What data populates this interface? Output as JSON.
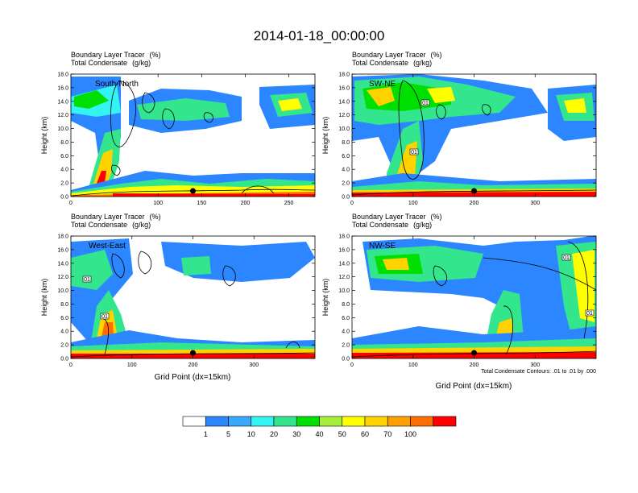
{
  "chart_data": {
    "type": "heatmap",
    "title": "2014-01-18_00:00:00",
    "fill_field": "Boundary Layer Tracer",
    "fill_units": "(%)",
    "contour_field": "Total Condensate",
    "contour_units": "(g/kg)",
    "contour_note": "Total Condensate Contours: .01 to .01 by .000",
    "xlabel": "Grid Point (dx=15km)",
    "ylabel": "Height (km)",
    "ylim": [
      0,
      18
    ],
    "yticks": [
      "0.0",
      "2.0",
      "4.0",
      "6.0",
      "8.0",
      "10.0",
      "12.0",
      "14.0",
      "16.0",
      "18.0"
    ],
    "colorbar": {
      "levels": [
        "1",
        "5",
        "10",
        "20",
        "30",
        "40",
        "50",
        "60",
        "70",
        "100"
      ],
      "colors": [
        "#ffffff",
        "#2b86ff",
        "#3ba8ff",
        "#33f3f3",
        "#33e58c",
        "#00e000",
        "#a6f03a",
        "#ffff00",
        "#ffd200",
        "#ff9f00",
        "#ff6e00",
        "#ff0000"
      ]
    },
    "panels": [
      {
        "region": "South-North",
        "xlim": [
          0,
          280
        ],
        "xticks": [
          "0",
          "100",
          "150",
          "200",
          "250"
        ],
        "xtick_values": [
          0,
          100,
          150,
          200,
          250
        ],
        "marker_x": 140
      },
      {
        "region": "SW-NE",
        "xlim": [
          0,
          400
        ],
        "xticks": [
          "0",
          "100",
          "200",
          "300"
        ],
        "xtick_values": [
          0,
          100,
          200,
          300
        ],
        "marker_x": 200
      },
      {
        "region": "West-East",
        "xlim": [
          0,
          400
        ],
        "xticks": [
          "0",
          "100",
          "200",
          "300"
        ],
        "xtick_values": [
          0,
          100,
          200,
          300
        ],
        "marker_x": 200
      },
      {
        "region": "NW-SE",
        "xlim": [
          0,
          400
        ],
        "xticks": [
          "0",
          "100",
          "200",
          "300"
        ],
        "xtick_values": [
          0,
          100,
          200,
          300
        ],
        "marker_x": 200
      }
    ],
    "contour_labels": [
      {
        "panel": "SW-NE",
        "text": "01"
      },
      {
        "panel": "SW-NE",
        "text": "01"
      },
      {
        "panel": "West-East",
        "text": "01"
      },
      {
        "panel": "West-East",
        "text": "01"
      },
      {
        "panel": "NW-SE",
        "text": "01"
      },
      {
        "panel": "NW-SE",
        "text": "01"
      }
    ]
  }
}
